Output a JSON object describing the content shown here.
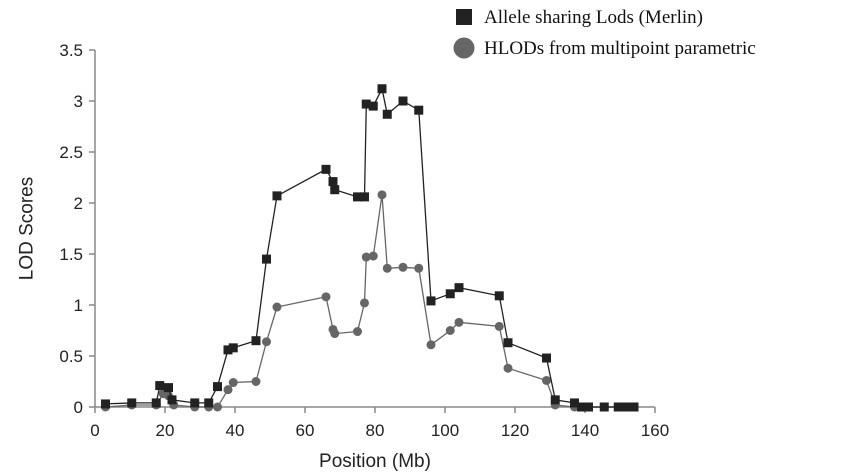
{
  "chart_data": {
    "type": "line",
    "title": "",
    "xlabel": "Position (Mb)",
    "ylabel": "LOD Scores",
    "xlim": [
      0,
      160
    ],
    "ylim": [
      0,
      3.5
    ],
    "x_ticks": [
      0,
      20,
      40,
      60,
      80,
      100,
      120,
      140,
      160
    ],
    "y_ticks": [
      0,
      0.5,
      1,
      1.5,
      2,
      2.5,
      3,
      3.5
    ],
    "y_tick_labels": [
      "0",
      "0.5",
      "1",
      "1.5",
      "2",
      "2.5",
      "3",
      "3.5"
    ],
    "grid": false,
    "legend_position": "top-right",
    "series": [
      {
        "name": "Allele sharing Lods (Merlin)",
        "marker": "square",
        "color": "#222222",
        "points": [
          [
            3,
            0.03
          ],
          [
            10.5,
            0.04
          ],
          [
            17.5,
            0.04
          ],
          [
            18.5,
            0.21
          ],
          [
            21,
            0.19
          ],
          [
            22,
            0.07
          ],
          [
            28.5,
            0.04
          ],
          [
            32.5,
            0.04
          ],
          [
            35,
            0.2
          ],
          [
            38,
            0.56
          ],
          [
            39.5,
            0.58
          ],
          [
            46,
            0.65
          ],
          [
            49,
            1.45
          ],
          [
            52,
            2.07
          ],
          [
            66,
            2.33
          ],
          [
            68,
            2.21
          ],
          [
            68.5,
            2.13
          ],
          [
            75,
            2.06
          ],
          [
            77,
            2.06
          ],
          [
            77.5,
            2.97
          ],
          [
            79.5,
            2.95
          ],
          [
            82,
            3.12
          ],
          [
            83.5,
            2.87
          ],
          [
            88,
            3.0
          ],
          [
            92.5,
            2.91
          ],
          [
            96,
            1.04
          ],
          [
            101.5,
            1.11
          ],
          [
            104,
            1.17
          ],
          [
            115.5,
            1.09
          ],
          [
            118,
            0.63
          ],
          [
            129,
            0.48
          ],
          [
            131.5,
            0.07
          ],
          [
            137,
            0.04
          ],
          [
            139,
            0.0
          ],
          [
            141,
            0.0
          ],
          [
            145.5,
            0.0
          ],
          [
            149.5,
            0.0
          ],
          [
            151,
            0.0
          ],
          [
            152.5,
            0.0
          ],
          [
            154,
            0.0
          ]
        ]
      },
      {
        "name": "HLODs from multipoint parametric",
        "marker": "circle",
        "color": "#666666",
        "points": [
          [
            3,
            0.0
          ],
          [
            10.5,
            0.02
          ],
          [
            17.5,
            0.02
          ],
          [
            19.5,
            0.13
          ],
          [
            21,
            0.11
          ],
          [
            22.5,
            0.02
          ],
          [
            28.5,
            0.0
          ],
          [
            32.5,
            0.0
          ],
          [
            35,
            0.0
          ],
          [
            38,
            0.17
          ],
          [
            39.5,
            0.24
          ],
          [
            46,
            0.25
          ],
          [
            49,
            0.64
          ],
          [
            52,
            0.98
          ],
          [
            66,
            1.08
          ],
          [
            68,
            0.76
          ],
          [
            68.5,
            0.72
          ],
          [
            75,
            0.74
          ],
          [
            77,
            1.02
          ],
          [
            77.5,
            1.47
          ],
          [
            79.5,
            1.48
          ],
          [
            82,
            2.08
          ],
          [
            83.5,
            1.36
          ],
          [
            88,
            1.37
          ],
          [
            92.5,
            1.36
          ],
          [
            96,
            0.61
          ],
          [
            101.5,
            0.75
          ],
          [
            104,
            0.83
          ],
          [
            115.5,
            0.79
          ],
          [
            118,
            0.38
          ],
          [
            129,
            0.26
          ],
          [
            131.5,
            0.02
          ],
          [
            137,
            0.0
          ],
          [
            139,
            0.0
          ],
          [
            141,
            0.0
          ],
          [
            145.5,
            0.0
          ],
          [
            149.5,
            0.0
          ],
          [
            151,
            0.0
          ],
          [
            152.5,
            0.0
          ],
          [
            154,
            0.0
          ]
        ]
      }
    ]
  }
}
